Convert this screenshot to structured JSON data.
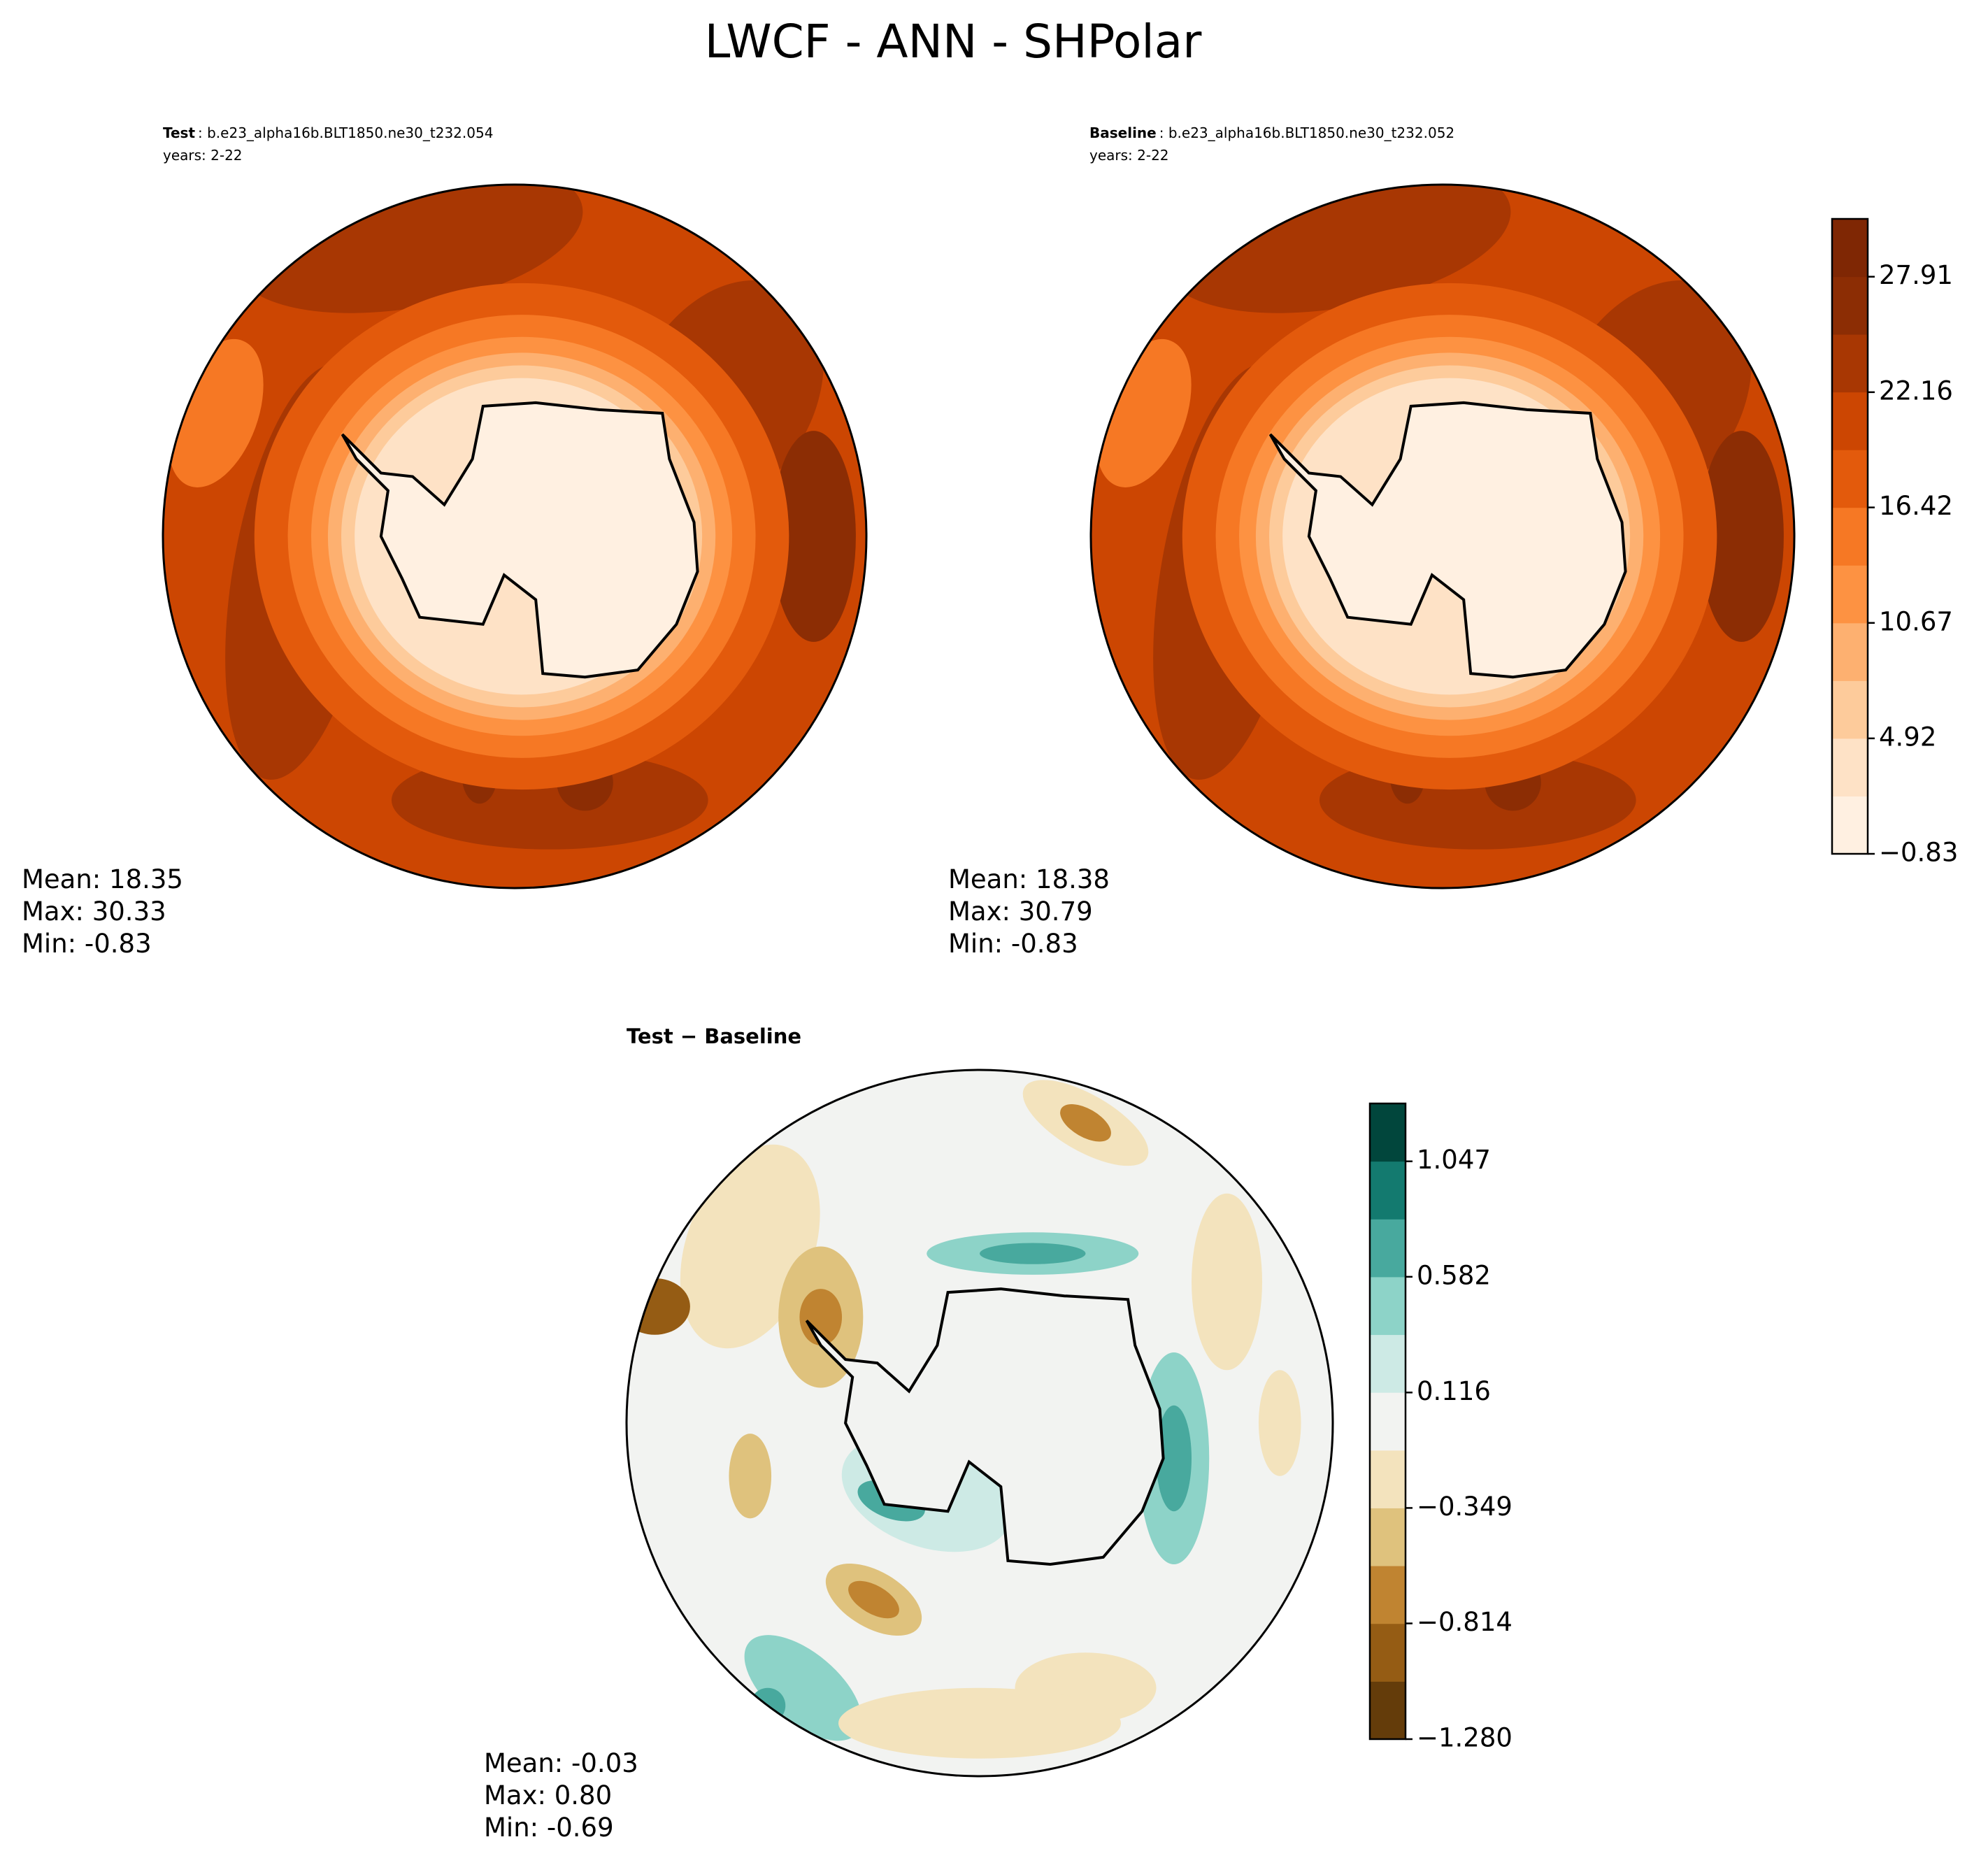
{
  "title": "LWCF - ANN - SHPolar",
  "chart_data": [
    {
      "type": "map",
      "label": "Test",
      "title_detail": ": b.e23_alpha16b.BLT1850.ne30_t232.054",
      "years": "years: 2-22",
      "stats": [
        "Mean: 18.35",
        "Max: 30.33",
        "Min: -0.83"
      ]
    },
    {
      "type": "map",
      "label": "Baseline",
      "title_detail": ": b.e23_alpha16b.BLT1850.ne30_t232.052",
      "years": "years: 2-22",
      "stats": [
        "Mean: 18.38",
        "Max: 30.79",
        "Min: -0.83"
      ],
      "colorbar": {
        "ylim": [
          -0.83,
          30.79
        ],
        "yticks": [
          {
            "value": -0.83,
            "label": "−0.83"
          },
          4.92,
          10.67,
          16.42,
          22.16,
          27.91
        ],
        "colors": [
          "#fff0e1",
          "#fee2c6",
          "#fdcb9b",
          "#fdb070",
          "#fd9242",
          "#f67824",
          "#e35a0c",
          "#cc4602",
          "#a83703",
          "#8c2d04",
          "#7f2704"
        ]
      }
    },
    {
      "type": "difference-map",
      "label": "Test − Baseline",
      "stats": [
        "Mean: -0.03",
        "Max:  0.80",
        "Min: -0.69"
      ],
      "colorbar": {
        "ylim": [
          -1.28,
          1.28
        ],
        "yticks": [
          {
            "value": -1.28,
            "label": "−1.280"
          },
          {
            "value": -0.814,
            "label": "−0.814"
          },
          {
            "value": -0.349,
            "label": "−0.349"
          },
          0.116,
          0.582,
          1.047
        ],
        "colors": [
          "#643c0a",
          "#955c14",
          "#c08431",
          "#dfc27d",
          "#f3e3bd",
          "#f2f3f1",
          "#cdeae5",
          "#8dd3c8",
          "#48a99e",
          "#137a6f",
          "#01463c"
        ]
      }
    }
  ]
}
